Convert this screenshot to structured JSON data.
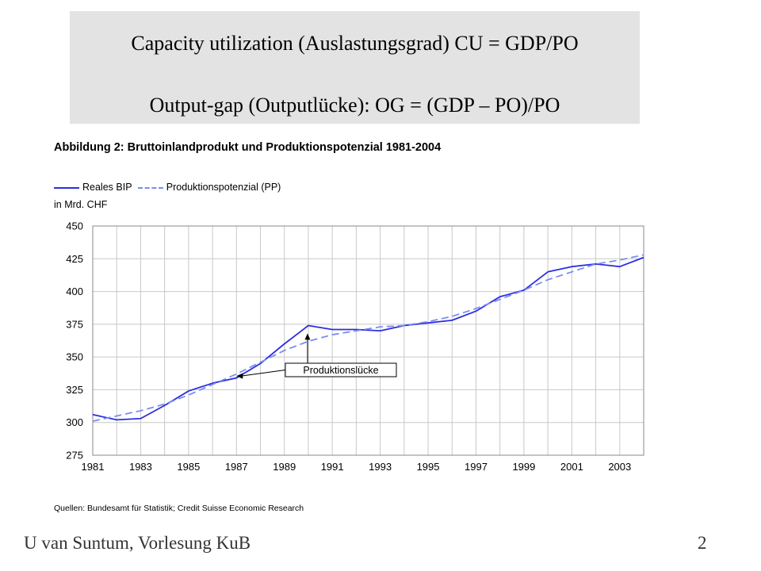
{
  "slide": {
    "formula_1": "Capacity utilization (Auslastungsgrad)  CU = GDP/PO",
    "formula_2": "Output-gap  (Outputlücke):  OG = (GDP – PO)/PO",
    "footer_author": "U van Suntum, Vorlesung KuB",
    "page_number": "2"
  },
  "chart_data": {
    "type": "line",
    "title": "Abbildung 2: Bruttoinlandprodukt und Produktionspotenzial 1981-2004",
    "unit_label": "in Mrd. CHF",
    "source": "Quellen: Bundesamt für Statistik; Credit Suisse Economic Research",
    "annotation": "Produktionslücke",
    "x": [
      1981,
      1982,
      1983,
      1984,
      1985,
      1986,
      1987,
      1988,
      1989,
      1990,
      1991,
      1992,
      1993,
      1994,
      1995,
      1996,
      1997,
      1998,
      1999,
      2000,
      2001,
      2002,
      2003,
      2004
    ],
    "xticks": [
      "1981",
      "1983",
      "1985",
      "1987",
      "1989",
      "1991",
      "1993",
      "1995",
      "1997",
      "1999",
      "2001",
      "2003"
    ],
    "ylim": [
      275,
      450
    ],
    "yticks": [
      "275",
      "300",
      "325",
      "350",
      "375",
      "400",
      "425",
      "450"
    ],
    "grid": true,
    "legend_position": "top-left",
    "series": [
      {
        "name": "Reales BIP",
        "style": "solid",
        "color": "#2e2ee0",
        "values": [
          306,
          302,
          303,
          313,
          324,
          330,
          334,
          345,
          360,
          374,
          371,
          371,
          370,
          374,
          376,
          378,
          385,
          396,
          401,
          415,
          419,
          421,
          419,
          426
        ]
      },
      {
        "name": "Produktionspotenzial (PP)",
        "style": "dashed",
        "color": "#7b8ef0",
        "values": [
          301,
          305,
          309,
          314,
          321,
          329,
          337,
          346,
          355,
          362,
          367,
          370,
          373,
          374,
          377,
          381,
          387,
          394,
          401,
          409,
          415,
          421,
          424,
          428
        ]
      }
    ]
  }
}
